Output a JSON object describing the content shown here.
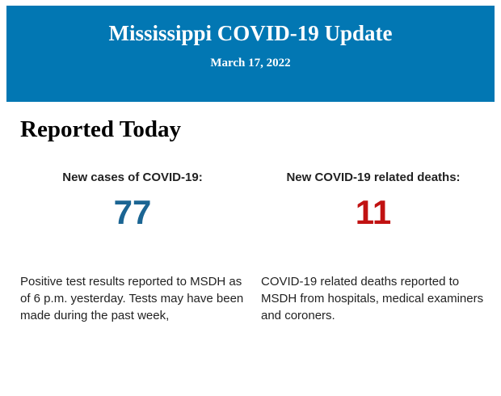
{
  "header": {
    "title": "Mississippi COVID-19 Update",
    "date": "March 17, 2022",
    "background_color": "#0277b3",
    "text_color": "#ffffff"
  },
  "main": {
    "heading": "Reported Today",
    "stats": [
      {
        "label": "New cases of COVID-19:",
        "value": "77",
        "value_color": "#1b6593",
        "description": "Positive test results reported to MSDH as of 6 p.m. yesterday. Tests may have been made during the past week,"
      },
      {
        "label": "New COVID-19 related deaths:",
        "value": "11",
        "value_color": "#c11212",
        "description": "COVID-19 related deaths reported to MSDH from hospitals, medical examiners and coroners."
      }
    ]
  }
}
